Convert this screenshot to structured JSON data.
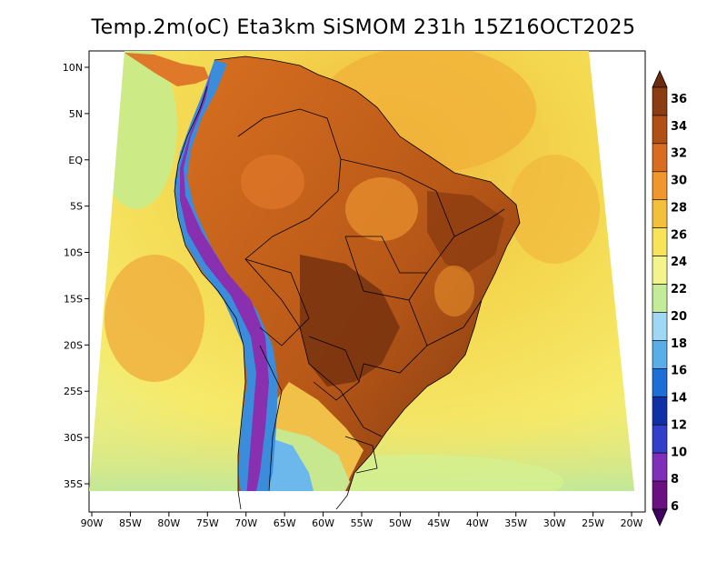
{
  "title": "Temp.2m(oC) Eta3km SiSMOM 231h 15Z16OCT2025",
  "map": {
    "lon_ticks": [
      "90W",
      "85W",
      "80W",
      "75W",
      "70W",
      "65W",
      "60W",
      "55W",
      "50W",
      "45W",
      "40W",
      "35W",
      "30W",
      "25W",
      "20W"
    ],
    "lat_ticks": [
      "10N",
      "5N",
      "EQ",
      "5S",
      "10S",
      "15S",
      "20S",
      "25S",
      "30S",
      "35S"
    ],
    "colors": {
      "ocean_warm": "#f0c848",
      "ocean_mid": "#f4e060",
      "ocean_cool": "#f2f07a",
      "coast_cool": "#c8ec94",
      "cold_green": "#b4e6a0",
      "land_hot": "#c06018",
      "land_very_hot": "#8c3c10",
      "land_warm": "#e0782a",
      "andes_blue": "#3c8cdc",
      "andes_purple": "#8830b0",
      "border": "#000000"
    }
  },
  "colorbar": {
    "levels": [
      "36",
      "34",
      "32",
      "30",
      "28",
      "26",
      "24",
      "22",
      "20",
      "18",
      "16",
      "14",
      "12",
      "10",
      "8",
      "6"
    ],
    "colors": [
      "#6e2a0c",
      "#8c3c12",
      "#b05016",
      "#d86c20",
      "#f0962c",
      "#f4c03c",
      "#f8e45a",
      "#f4f48c",
      "#c4ec98",
      "#9ed8f4",
      "#5aaee8",
      "#1e6ed8",
      "#1030a8",
      "#3040c8",
      "#8030b8",
      "#6a1080",
      "#400060"
    ]
  }
}
